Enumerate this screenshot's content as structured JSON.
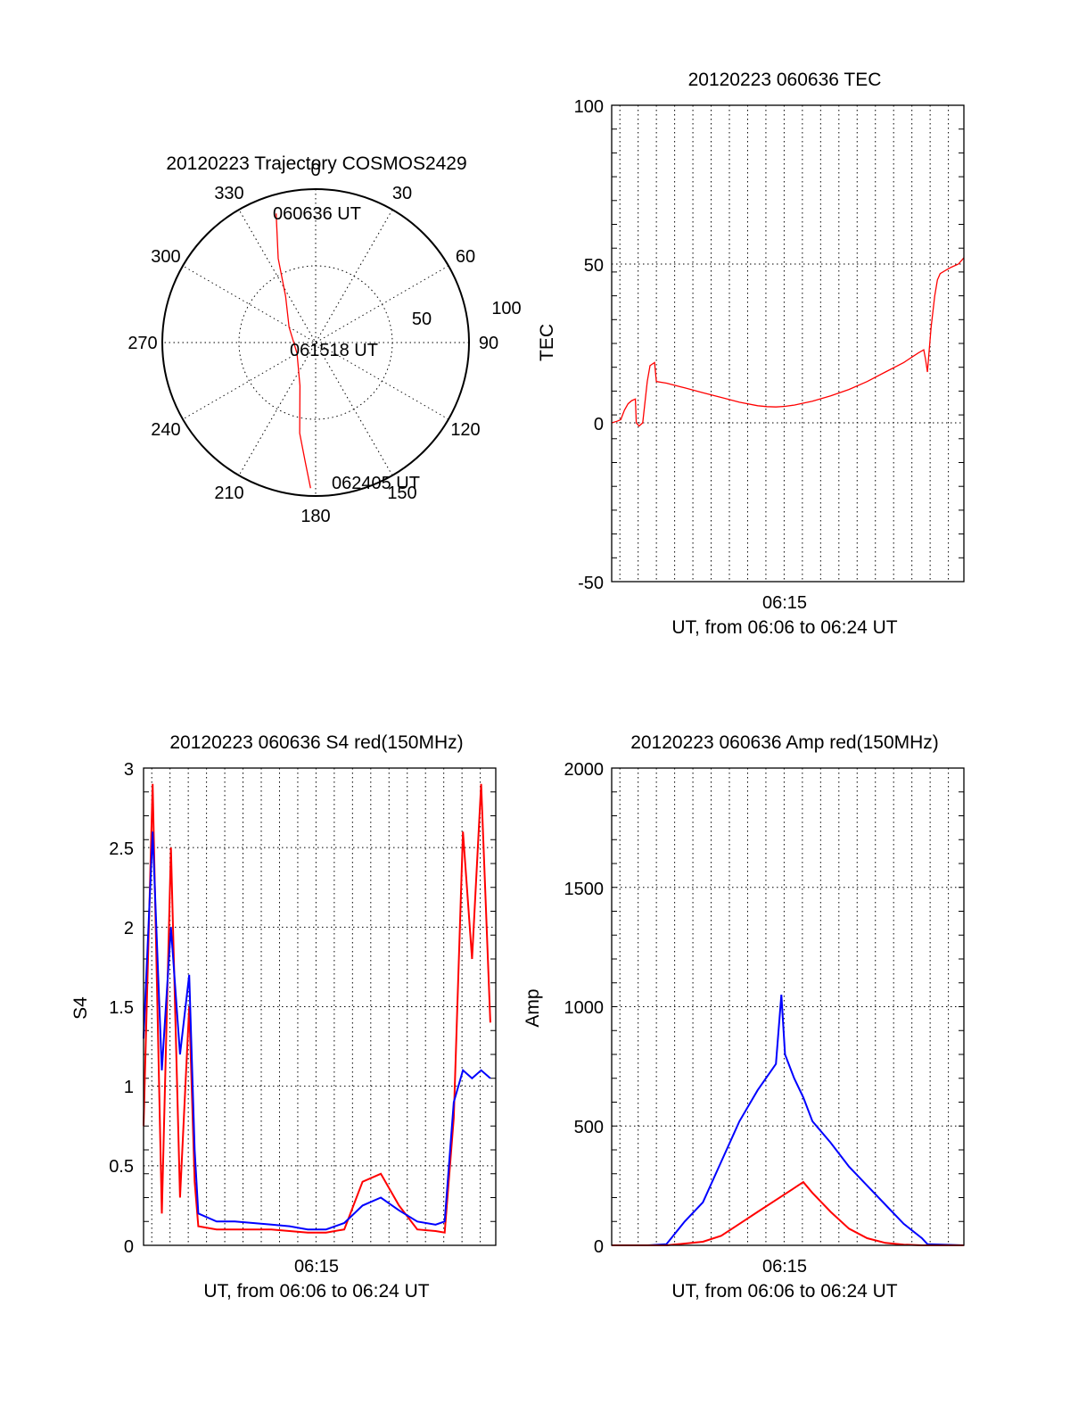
{
  "chart_data": [
    {
      "id": "trajectory",
      "type": "polar",
      "title": "20120223 Trajectory COSMOS2429",
      "azimuth_labels": [
        "0",
        "30",
        "60",
        "90",
        "120",
        "150",
        "180",
        "210",
        "240",
        "270",
        "300",
        "330"
      ],
      "radial_labels": [
        "50",
        "100"
      ],
      "track": {
        "color": "#ff0000",
        "points": [
          {
            "az": 343,
            "zen": 88
          },
          {
            "az": 336,
            "zen": 60
          },
          {
            "az": 327,
            "zen": 36
          },
          {
            "az": 300,
            "zen": 20
          },
          {
            "az": 240,
            "zen": 14
          },
          {
            "az": 200,
            "zen": 30
          },
          {
            "az": 190,
            "zen": 60
          },
          {
            "az": 185,
            "zen": 78
          },
          {
            "az": 182,
            "zen": 95
          }
        ]
      },
      "annotations": [
        {
          "text": "060636 UT"
        },
        {
          "text": "061518 UT"
        },
        {
          "text": "062405 UT"
        }
      ]
    },
    {
      "id": "tec",
      "type": "line",
      "title": "20120223 060636 TEC",
      "ylabel": "TEC",
      "xlabel": "UT, from 06:06 to 06:24 UT",
      "ylim": [
        -50,
        100
      ],
      "yticks": [
        "100",
        "50",
        "0",
        "-50"
      ],
      "xtick_label": "06:15",
      "color": "#ff0000",
      "series": [
        {
          "values": [
            [
              0.0,
              0
            ],
            [
              0.3,
              0.5
            ],
            [
              0.5,
              1
            ],
            [
              0.7,
              4
            ],
            [
              0.9,
              6
            ],
            [
              1.1,
              7
            ],
            [
              1.3,
              7.5
            ],
            [
              1.35,
              0
            ],
            [
              1.5,
              -1
            ],
            [
              1.7,
              0
            ],
            [
              1.95,
              13
            ],
            [
              2.1,
              18
            ],
            [
              2.35,
              19
            ],
            [
              2.45,
              13
            ],
            [
              3,
              12.5
            ],
            [
              4,
              11
            ],
            [
              5,
              9.5
            ],
            [
              6,
              8
            ],
            [
              7,
              6.5
            ],
            [
              8,
              5.4
            ],
            [
              8.5,
              5.1
            ],
            [
              9,
              5
            ],
            [
              9.5,
              5.2
            ],
            [
              10,
              5.6
            ],
            [
              11,
              6.8
            ],
            [
              12,
              8.5
            ],
            [
              13,
              10.5
            ],
            [
              14,
              13
            ],
            [
              15,
              16
            ],
            [
              16,
              19
            ],
            [
              16.8,
              22
            ],
            [
              17.1,
              23
            ],
            [
              17.2,
              20
            ],
            [
              17.3,
              16
            ],
            [
              17.5,
              30
            ],
            [
              17.7,
              40
            ],
            [
              17.85,
              45
            ],
            [
              18.0,
              47
            ],
            [
              18.3,
              48
            ],
            [
              18.6,
              49
            ],
            [
              19,
              50
            ],
            [
              19.3,
              52
            ]
          ]
        }
      ]
    },
    {
      "id": "s4",
      "type": "line",
      "title": "20120223 060636 S4 red(150MHz)",
      "ylabel": "S4",
      "xlabel": "UT, from 06:06 to 06:24 UT",
      "ylim": [
        0,
        3
      ],
      "yticks": [
        "3",
        "2.5",
        "2",
        "1.5",
        "1",
        "0.5",
        "0"
      ],
      "xtick_label": "06:15",
      "series": [
        {
          "color": "#ff0000",
          "values": [
            [
              0,
              0.75
            ],
            [
              0.5,
              2.9
            ],
            [
              1,
              0.2
            ],
            [
              1.5,
              2.5
            ],
            [
              2,
              0.3
            ],
            [
              2.5,
              1.5
            ],
            [
              2.8,
              0.4
            ],
            [
              3.0,
              0.12
            ],
            [
              4,
              0.1
            ],
            [
              5,
              0.1
            ],
            [
              6,
              0.1
            ],
            [
              7,
              0.1
            ],
            [
              8,
              0.09
            ],
            [
              9,
              0.08
            ],
            [
              10,
              0.08
            ],
            [
              11,
              0.1
            ],
            [
              11.5,
              0.25
            ],
            [
              12,
              0.4
            ],
            [
              13,
              0.45
            ],
            [
              14,
              0.25
            ],
            [
              15,
              0.1
            ],
            [
              16,
              0.09
            ],
            [
              16.5,
              0.08
            ],
            [
              17,
              0.8
            ],
            [
              17.5,
              2.6
            ],
            [
              18,
              1.8
            ],
            [
              18.5,
              2.9
            ],
            [
              19,
              1.4
            ]
          ]
        },
        {
          "color": "#0000ff",
          "values": [
            [
              0,
              1.3
            ],
            [
              0.5,
              2.6
            ],
            [
              1,
              1.1
            ],
            [
              1.5,
              2.0
            ],
            [
              2,
              1.2
            ],
            [
              2.5,
              1.7
            ],
            [
              2.8,
              0.6
            ],
            [
              3.0,
              0.2
            ],
            [
              4,
              0.15
            ],
            [
              5,
              0.15
            ],
            [
              6,
              0.14
            ],
            [
              7,
              0.13
            ],
            [
              8,
              0.12
            ],
            [
              9,
              0.1
            ],
            [
              10,
              0.1
            ],
            [
              11,
              0.14
            ],
            [
              12,
              0.25
            ],
            [
              13,
              0.3
            ],
            [
              14,
              0.22
            ],
            [
              15,
              0.15
            ],
            [
              16,
              0.13
            ],
            [
              16.5,
              0.15
            ],
            [
              17,
              0.9
            ],
            [
              17.5,
              1.1
            ],
            [
              18,
              1.05
            ],
            [
              18.5,
              1.1
            ],
            [
              19,
              1.05
            ]
          ]
        }
      ]
    },
    {
      "id": "amp",
      "type": "line",
      "title": "20120223 060636 Amp red(150MHz)",
      "ylabel": "Amp",
      "xlabel": "UT, from 06:06 to 06:24 UT",
      "ylim": [
        0,
        2000
      ],
      "yticks": [
        "2000",
        "1500",
        "1000",
        "500",
        "0"
      ],
      "xtick_label": "06:15",
      "series": [
        {
          "color": "#0000ff",
          "values": [
            [
              0,
              0
            ],
            [
              2,
              0
            ],
            [
              3,
              5
            ],
            [
              4,
              100
            ],
            [
              5,
              180
            ],
            [
              6,
              350
            ],
            [
              7,
              520
            ],
            [
              8,
              650
            ],
            [
              9,
              760
            ],
            [
              9.3,
              1050
            ],
            [
              9.5,
              800
            ],
            [
              10,
              700
            ],
            [
              10.5,
              620
            ],
            [
              11,
              520
            ],
            [
              12,
              430
            ],
            [
              13,
              330
            ],
            [
              14,
              250
            ],
            [
              15,
              170
            ],
            [
              16,
              90
            ],
            [
              17,
              30
            ],
            [
              17.3,
              5
            ],
            [
              19.3,
              0
            ]
          ]
        },
        {
          "color": "#ff0000",
          "values": [
            [
              0,
              0
            ],
            [
              3,
              0
            ],
            [
              5,
              15
            ],
            [
              6,
              40
            ],
            [
              7,
              90
            ],
            [
              8,
              140
            ],
            [
              9,
              190
            ],
            [
              10,
              240
            ],
            [
              10.5,
              265
            ],
            [
              11,
              220
            ],
            [
              12,
              140
            ],
            [
              13,
              70
            ],
            [
              14,
              30
            ],
            [
              15,
              10
            ],
            [
              16,
              3
            ],
            [
              17,
              0
            ],
            [
              19.3,
              0
            ]
          ]
        }
      ]
    }
  ]
}
